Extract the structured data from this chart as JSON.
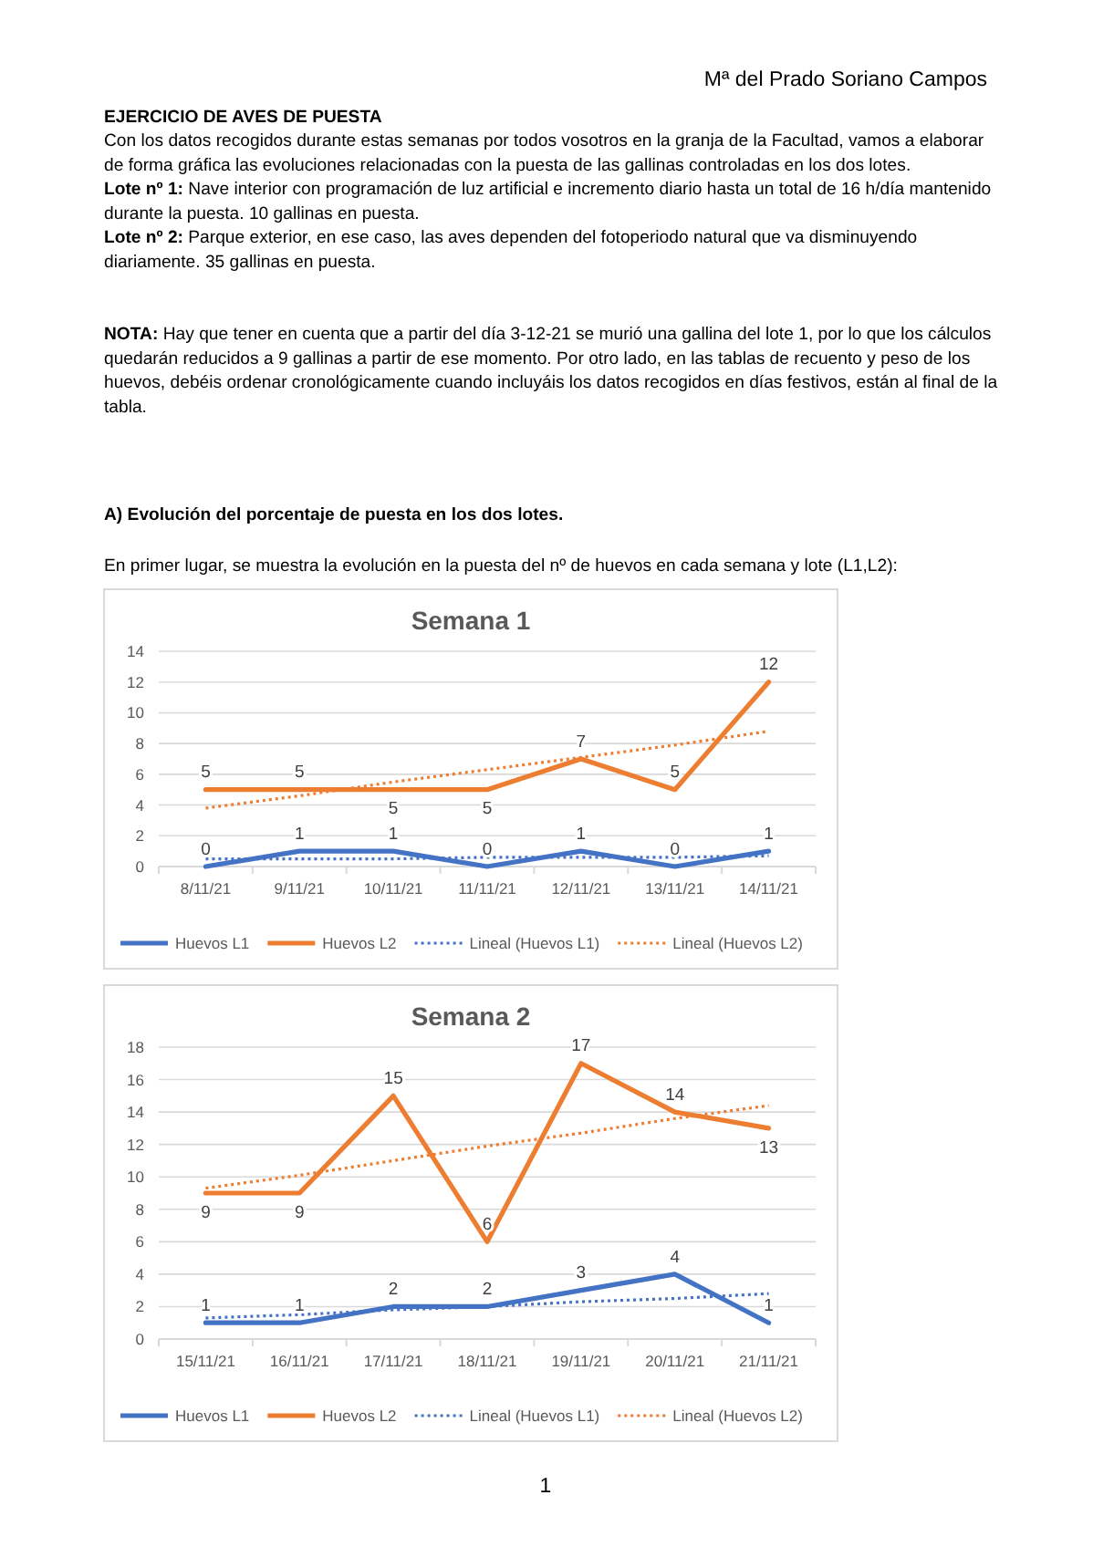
{
  "chart_data": [
    {
      "type": "other",
      "title": "EJERCICIO DE AVES DE PUESTA",
      "subtitle": "A)  Evolución del porcentaje de puesta en los dos lotes.",
      "annotations": [
        "Mª del Prado Soriano Campos",
        "Con los datos recogidos durante estas semanas por todos vosotros en la granja de la Facultad, vamos a elaborar de forma gráfica las evoluciones relacionadas con la puesta de las gallinas controladas en los dos lotes.",
        "Lote nº 1: Nave interior con programación de luz artificial e incremento diario hasta un total de 16 h/día mantenido durante la puesta. 10 gallinas en puesta.",
        "Lote nº 2: Parque exterior, en ese caso, las aves dependen del fotoperiodo natural que va disminuyendo diariamente. 35 gallinas en puesta.",
        "NOTA: Hay que tener en cuenta que a partir del día 3-12-21 se murió una gallina del lote 1, por lo que los cálculos quedarán reducidos a 9 gallinas a partir de ese momento. Por otro lado, en las tablas de recuento y peso de los huevos, debéis ordenar cronológicamente cuando incluyáis los datos recogidos en días festivos, están al final de la tabla.",
        "En primer lugar, se muestra la evolución en la puesta del nº de huevos en cada semana y lote (L1,L2):",
        "1"
      ]
    },
    {
      "type": "line",
      "title": "Semana 1",
      "categories": [
        "8/11/21",
        "9/11/21",
        "10/11/21",
        "11/11/21",
        "12/11/21",
        "13/11/21",
        "14/11/21"
      ],
      "ylim": [
        0,
        14
      ],
      "yticks": [
        0,
        2,
        4,
        6,
        8,
        10,
        12,
        14
      ],
      "grid": "y",
      "legend": "bottom",
      "marker": "none",
      "series": [
        {
          "name": "Huevos L1",
          "color": "#4472c4",
          "values": [
            0,
            1,
            1,
            0,
            1,
            0,
            1
          ],
          "value_labels": [
            "0",
            "1",
            "1",
            "0",
            "1",
            "0",
            "1"
          ]
        },
        {
          "name": "Huevos L2",
          "color": "#ed7d31",
          "values": [
            5,
            5,
            5,
            5,
            7,
            5,
            12
          ],
          "value_labels": [
            "5",
            "5",
            "5",
            "5",
            "7",
            "5",
            "12"
          ]
        },
        {
          "name": "Lineal (Huevos L1)",
          "color": "#4472c4",
          "line_style": "dotted",
          "values": [
            0.5,
            0.5,
            0.5,
            0.6,
            0.6,
            0.6,
            0.7
          ]
        },
        {
          "name": "Lineal (Huevos L2)",
          "color": "#ed7d31",
          "line_style": "dotted",
          "values": [
            3.8,
            4.6,
            5.5,
            6.3,
            7.1,
            7.9,
            8.8
          ]
        }
      ]
    },
    {
      "type": "line",
      "title": "Semana 2",
      "categories": [
        "15/11/21",
        "16/11/21",
        "17/11/21",
        "18/11/21",
        "19/11/21",
        "20/11/21",
        "21/11/21"
      ],
      "ylim": [
        0,
        18
      ],
      "yticks": [
        0,
        2,
        4,
        6,
        8,
        10,
        12,
        14,
        16,
        18
      ],
      "grid": "y",
      "legend": "bottom",
      "marker": "none",
      "series": [
        {
          "name": "Huevos L1",
          "color": "#4472c4",
          "values": [
            1,
            1,
            2,
            2,
            3,
            4,
            1
          ],
          "value_labels": [
            "1",
            "1",
            "2",
            "2",
            "3",
            "4",
            "1"
          ]
        },
        {
          "name": "Huevos L2",
          "color": "#ed7d31",
          "values": [
            9,
            9,
            15,
            6,
            17,
            14,
            13
          ],
          "value_labels": [
            "9",
            "9",
            "15",
            "6",
            "17",
            "14",
            "13"
          ]
        },
        {
          "name": "Lineal (Huevos L1)",
          "color": "#4472c4",
          "line_style": "dotted",
          "values": [
            1.3,
            1.5,
            1.8,
            2,
            2.3,
            2.5,
            2.8
          ]
        },
        {
          "name": "Lineal (Huevos L2)",
          "color": "#ed7d31",
          "line_style": "dotted",
          "values": [
            9.3,
            10.1,
            11,
            11.9,
            12.7,
            13.6,
            14.4
          ]
        }
      ]
    }
  ]
}
